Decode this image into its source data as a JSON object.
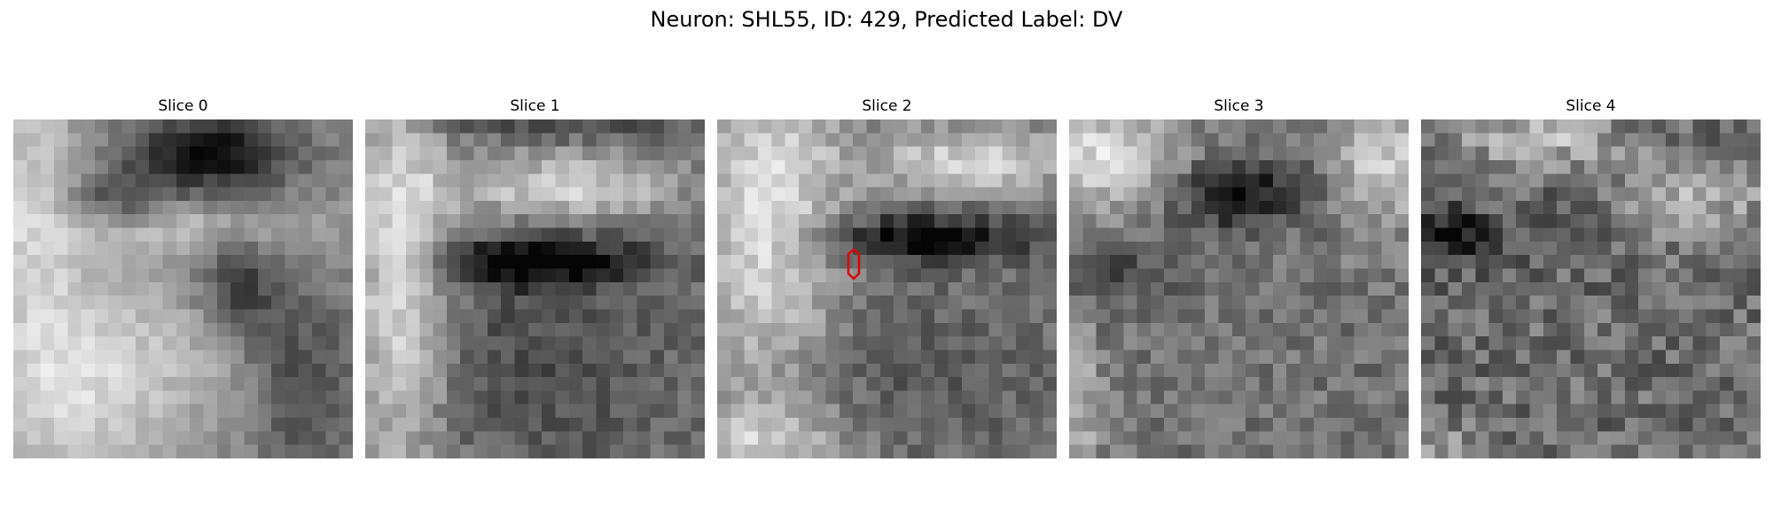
{
  "figure": {
    "title": "Neuron: SHL55, ID: 429, Predicted Label: DV"
  },
  "panels": [
    {
      "title": "Slice 0"
    },
    {
      "title": "Slice 1"
    },
    {
      "title": "Slice 2"
    },
    {
      "title": "Slice 3"
    },
    {
      "title": "Slice 4"
    }
  ],
  "colors": {
    "roi_outline": "#e00000",
    "colormap": "gray"
  },
  "roi": {
    "slice_index": 2
  }
}
